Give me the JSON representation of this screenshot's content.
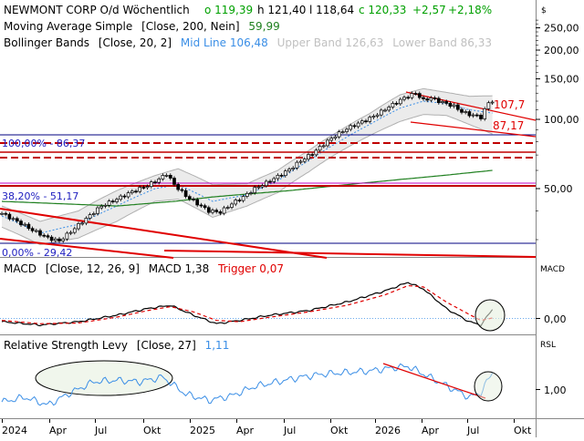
{
  "header": {
    "title": "NEWMONT CORP O/d  Wöchentlich",
    "open": "o 119,39",
    "high": "h 121,40",
    "low": "l 118,64",
    "close": "c 120,33",
    "change": "+2,57",
    "change_pct": "+2,18%"
  },
  "currency": "$",
  "legend": {
    "sma_label": "Moving Average Simple",
    "sma_params": "[Close, 200, Nein]",
    "sma_value": "59,99",
    "bb_label": "Bollinger Bands",
    "bb_params": "[Close, 20, 2]",
    "bb_mid": "Mid Line 106,48",
    "bb_upper": "Upper Band 126,63",
    "bb_lower": "Lower Band 86,33"
  },
  "annotations": {
    "fib_100": "100,00% - 86,37",
    "fib_382": "38,20% - 51,17",
    "fib_0": "0,00% - 29,42",
    "upper_channel": "107,7",
    "lower_channel": "87,17"
  },
  "macd_panel": {
    "label": "MACD",
    "params": "[Close, 12, 26, 9]",
    "macd_value": "MACD 1,38",
    "trigger_value": "Trigger 0,07",
    "axis_label": "MACD",
    "tick": "0,00"
  },
  "rsl_panel": {
    "label": "Relative Strength Levy",
    "params": "[Close, 27]",
    "value": "1,11",
    "axis_label": "RSL",
    "tick": "1,00"
  },
  "colors": {
    "up": "#00a000",
    "down": "#e00000",
    "sma": "#208020",
    "bb_mid": "#3a8ee6",
    "bb_band": "#c8c8c8",
    "fib": "#c00000",
    "macd": "#000000",
    "trigger": "#e00000",
    "rsl": "#3a8ee6",
    "trend": "#e00000"
  },
  "chart_data": {
    "type": "candlestick",
    "scale": "log",
    "y_ticks": [
      "250,00",
      "200,00",
      "150,00",
      "100,00",
      "50,00"
    ],
    "y_tick_values": [
      250,
      200,
      150,
      100,
      50
    ],
    "ylim": [
      20,
      330
    ],
    "x_ticks": [
      "2024",
      "Apr",
      "Jul",
      "Okt",
      "2025",
      "Apr",
      "Jul",
      "Okt",
      "2026",
      "Apr",
      "Jul",
      "Okt"
    ],
    "fib_levels": [
      86.37,
      51.17,
      29.42
    ],
    "price_points": [
      [
        0,
        39.0
      ],
      [
        4,
        36.0
      ],
      [
        8,
        33.0
      ],
      [
        12,
        30.5
      ],
      [
        15,
        29.6
      ],
      [
        18,
        32.5
      ],
      [
        22,
        37.0
      ],
      [
        26,
        42.0
      ],
      [
        30,
        45.0
      ],
      [
        34,
        48.5
      ],
      [
        38,
        51.5
      ],
      [
        41,
        55.0
      ],
      [
        43,
        58.0
      ],
      [
        45,
        52.0
      ],
      [
        48,
        46.5
      ],
      [
        51,
        43.0
      ],
      [
        54,
        40.0
      ],
      [
        57,
        39.5
      ],
      [
        60,
        43.0
      ],
      [
        63,
        46.0
      ],
      [
        66,
        50.0
      ],
      [
        69,
        53.0
      ],
      [
        72,
        56.5
      ],
      [
        75,
        60.5
      ],
      [
        78,
        66.0
      ],
      [
        81,
        71.0
      ],
      [
        84,
        78.0
      ],
      [
        87,
        85.0
      ],
      [
        90,
        91.0
      ],
      [
        93,
        96.0
      ],
      [
        96,
        101.0
      ],
      [
        99,
        108.0
      ],
      [
        102,
        116.0
      ],
      [
        105,
        124.0
      ],
      [
        108,
        130.0
      ],
      [
        110,
        121.0
      ],
      [
        112,
        124.0
      ],
      [
        114,
        120.0
      ],
      [
        116,
        117.0
      ],
      [
        118,
        114.0
      ],
      [
        120,
        108.0
      ],
      [
        122,
        105.0
      ],
      [
        123.5,
        104.0
      ],
      [
        125,
        102.0
      ],
      [
        127,
        118.0
      ],
      [
        128,
        120.33
      ]
    ],
    "bb_mid_points": [
      [
        0,
        38.0
      ],
      [
        10,
        32.0
      ],
      [
        20,
        35.0
      ],
      [
        30,
        42.0
      ],
      [
        40,
        50.0
      ],
      [
        46,
        52.0
      ],
      [
        55,
        44.0
      ],
      [
        64,
        47.0
      ],
      [
        72,
        54.0
      ],
      [
        80,
        66.0
      ],
      [
        88,
        80.0
      ],
      [
        96,
        95.0
      ],
      [
        104,
        112.0
      ],
      [
        110,
        120.0
      ],
      [
        116,
        117.0
      ],
      [
        122,
        110.0
      ],
      [
        128,
        106.48
      ]
    ],
    "bb_upper_points": [
      [
        0,
        42.0
      ],
      [
        10,
        36.0
      ],
      [
        20,
        40.0
      ],
      [
        30,
        49.0
      ],
      [
        40,
        57.0
      ],
      [
        46,
        61.0
      ],
      [
        55,
        52.0
      ],
      [
        64,
        52.5
      ],
      [
        72,
        60.0
      ],
      [
        80,
        73.0
      ],
      [
        88,
        89.0
      ],
      [
        96,
        106.0
      ],
      [
        104,
        128.0
      ],
      [
        110,
        136.0
      ],
      [
        116,
        131.0
      ],
      [
        122,
        126.0
      ],
      [
        128,
        126.63
      ]
    ],
    "bb_lower_points": [
      [
        0,
        34.0
      ],
      [
        10,
        28.5
      ],
      [
        20,
        30.5
      ],
      [
        30,
        36.0
      ],
      [
        40,
        44.0
      ],
      [
        46,
        45.0
      ],
      [
        55,
        37.5
      ],
      [
        64,
        42.0
      ],
      [
        72,
        48.0
      ],
      [
        80,
        59.0
      ],
      [
        88,
        72.0
      ],
      [
        96,
        85.0
      ],
      [
        104,
        98.0
      ],
      [
        110,
        105.0
      ],
      [
        116,
        104.0
      ],
      [
        122,
        95.0
      ],
      [
        128,
        86.33
      ]
    ],
    "sma_points": [
      [
        0,
        44.0
      ],
      [
        15,
        43.0
      ],
      [
        30,
        42.0
      ],
      [
        45,
        44.0
      ],
      [
        55,
        46.0
      ],
      [
        65,
        47.5
      ],
      [
        75,
        49.0
      ],
      [
        85,
        51.0
      ],
      [
        95,
        53.0
      ],
      [
        105,
        55.0
      ],
      [
        115,
        57.0
      ],
      [
        128,
        59.99
      ]
    ],
    "macd_points": [
      [
        0,
        -0.5
      ],
      [
        10,
        -1.0
      ],
      [
        20,
        -0.5
      ],
      [
        30,
        0.5
      ],
      [
        38,
        1.5
      ],
      [
        44,
        2.0
      ],
      [
        50,
        0.5
      ],
      [
        56,
        -0.8
      ],
      [
        62,
        -0.3
      ],
      [
        70,
        0.5
      ],
      [
        80,
        1.2
      ],
      [
        90,
        2.5
      ],
      [
        100,
        4.2
      ],
      [
        106,
        5.5
      ],
      [
        110,
        4.5
      ],
      [
        116,
        1.5
      ],
      [
        122,
        -0.5
      ],
      [
        125,
        -1.0
      ],
      [
        128,
        1.38
      ]
    ],
    "trigger_points": [
      [
        0,
        -0.3
      ],
      [
        10,
        -0.8
      ],
      [
        20,
        -0.7
      ],
      [
        30,
        0.2
      ],
      [
        38,
        1.2
      ],
      [
        44,
        1.8
      ],
      [
        50,
        1.0
      ],
      [
        56,
        -0.3
      ],
      [
        62,
        -0.5
      ],
      [
        70,
        0.2
      ],
      [
        80,
        1.0
      ],
      [
        90,
        2.0
      ],
      [
        100,
        3.6
      ],
      [
        106,
        5.0
      ],
      [
        110,
        4.8
      ],
      [
        116,
        2.5
      ],
      [
        122,
        0.6
      ],
      [
        125,
        -0.3
      ],
      [
        128,
        0.07
      ]
    ],
    "rsl_points": [
      [
        0,
        0.92
      ],
      [
        6,
        0.95
      ],
      [
        12,
        0.9
      ],
      [
        18,
        0.98
      ],
      [
        24,
        1.05
      ],
      [
        30,
        1.06
      ],
      [
        36,
        1.05
      ],
      [
        42,
        1.08
      ],
      [
        48,
        0.97
      ],
      [
        54,
        0.93
      ],
      [
        60,
        0.96
      ],
      [
        66,
        1.02
      ],
      [
        72,
        1.05
      ],
      [
        78,
        1.08
      ],
      [
        84,
        1.1
      ],
      [
        90,
        1.11
      ],
      [
        96,
        1.12
      ],
      [
        102,
        1.14
      ],
      [
        106,
        1.15
      ],
      [
        110,
        1.1
      ],
      [
        114,
        1.05
      ],
      [
        118,
        1.0
      ],
      [
        122,
        0.95
      ],
      [
        125,
        0.98
      ],
      [
        128,
        1.11
      ]
    ]
  }
}
